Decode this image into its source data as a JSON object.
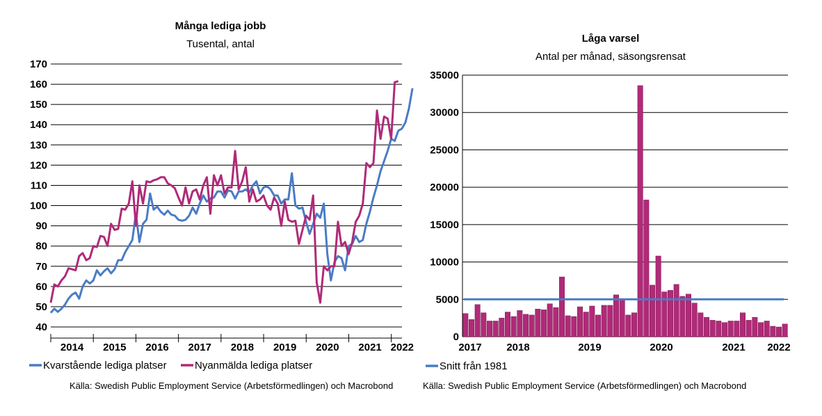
{
  "colors": {
    "blue": "#4a7cc4",
    "magenta": "#b02a78",
    "bar": "#b02a78",
    "grid": "#000000"
  },
  "chart_data": [
    {
      "type": "line",
      "title": "Många lediga jobb",
      "subtitle": "Tusental, antal",
      "ylim": [
        40,
        170
      ],
      "yticks": [
        40,
        50,
        60,
        70,
        80,
        90,
        100,
        110,
        120,
        130,
        140,
        150,
        160,
        170
      ],
      "xlim": [
        2014.0,
        2022.25
      ],
      "xtick_labels": [
        "2014",
        "2015",
        "2016",
        "2017",
        "2018",
        "2019",
        "2020",
        "2021",
        "2022"
      ],
      "grid": true,
      "legend_position": "bottom",
      "source": "Källa: Swedish Public Employment Service (Arbetsförmedlingen) och Macrobond",
      "series": [
        {
          "name": "Kvarstående lediga platser",
          "color": "#4a7cc4",
          "x_start": 2014.0,
          "x_step": 0.0833,
          "values": [
            47,
            49,
            47.5,
            49,
            51,
            54,
            56,
            57,
            54,
            60,
            63,
            61.5,
            63,
            68,
            65.5,
            67.5,
            69,
            66.5,
            68.5,
            73,
            73,
            77,
            80,
            83,
            96,
            82,
            91,
            93,
            106,
            98,
            99.5,
            97,
            95.5,
            97.5,
            95.5,
            95,
            93,
            92.5,
            93,
            95,
            99,
            96,
            101,
            105,
            102,
            103.5,
            104,
            107,
            107,
            104,
            107.5,
            107,
            103.5,
            107,
            107,
            108,
            106.5,
            110,
            112,
            106,
            109,
            109.5,
            108,
            105,
            105,
            101,
            103,
            103,
            116,
            100,
            98.5,
            99,
            92,
            86,
            91,
            96,
            94,
            101,
            76,
            63,
            72,
            75,
            74,
            68,
            80,
            81,
            85,
            82,
            83,
            91,
            97,
            104,
            110,
            117,
            122,
            127,
            133,
            132,
            137,
            138,
            141,
            148,
            158
          ]
        },
        {
          "name": "Nyanmälda lediga platser",
          "color": "#b02a78",
          "x_start": 2014.0,
          "x_step": 0.0833,
          "values": [
            52,
            61,
            60,
            63,
            65,
            69,
            68.5,
            68,
            75,
            76.5,
            73,
            74,
            80,
            79.5,
            85,
            84.5,
            80,
            91,
            88,
            88.5,
            98.5,
            98,
            101,
            112,
            90,
            110,
            101,
            112,
            111.5,
            112.5,
            113,
            114,
            114,
            111,
            110,
            108.5,
            104,
            100,
            109,
            101,
            107,
            108,
            103,
            110,
            114,
            96,
            115,
            110,
            115,
            106,
            109,
            109,
            127,
            108,
            112,
            119,
            102,
            108,
            102,
            103,
            105,
            100,
            98,
            104,
            101,
            90,
            102,
            93,
            92,
            92.5,
            81,
            88,
            95,
            93,
            105,
            62,
            52,
            70,
            68,
            70,
            70,
            92,
            80,
            82,
            76,
            82,
            92,
            95,
            101,
            121,
            119,
            121,
            147,
            133,
            144,
            143,
            133,
            161,
            161.5
          ]
        }
      ]
    },
    {
      "type": "bar",
      "title": "Låga varsel",
      "subtitle": "Antal per månad, säsongsrensat",
      "ylim": [
        0,
        35000
      ],
      "yticks": [
        0,
        5000,
        10000,
        15000,
        20000,
        25000,
        30000,
        35000
      ],
      "xlim": [
        2017.0,
        2022.0
      ],
      "xtick_labels": [
        "2017",
        "2018",
        "2019",
        "2020",
        "2021",
        "2022"
      ],
      "grid": true,
      "legend_position": "bottom",
      "source": "Källa: Swedish Public Employment Service (Arbetsförmedlingen) och Macrobond",
      "bars_start": 2017.0,
      "bars_step": 0.1,
      "values": [
        3100,
        2300,
        4300,
        3200,
        2100,
        2100,
        2500,
        3300,
        2700,
        3500,
        3000,
        2900,
        3700,
        3600,
        4400,
        3900,
        8000,
        2800,
        2700,
        4000,
        3300,
        4100,
        2900,
        4200,
        4200,
        5600,
        5100,
        2900,
        3200,
        33600,
        18300,
        6900,
        10800,
        6000,
        6200,
        7000,
        5400,
        5700,
        4500,
        3200,
        2600,
        2200,
        2100,
        1900,
        2100,
        2100,
        3200,
        2200,
        2600,
        1900,
        2100,
        1400,
        1300,
        1700
      ],
      "series": [
        {
          "name": "Snitt från 1981",
          "color": "#4a7cc4",
          "value": 5000
        }
      ]
    }
  ]
}
